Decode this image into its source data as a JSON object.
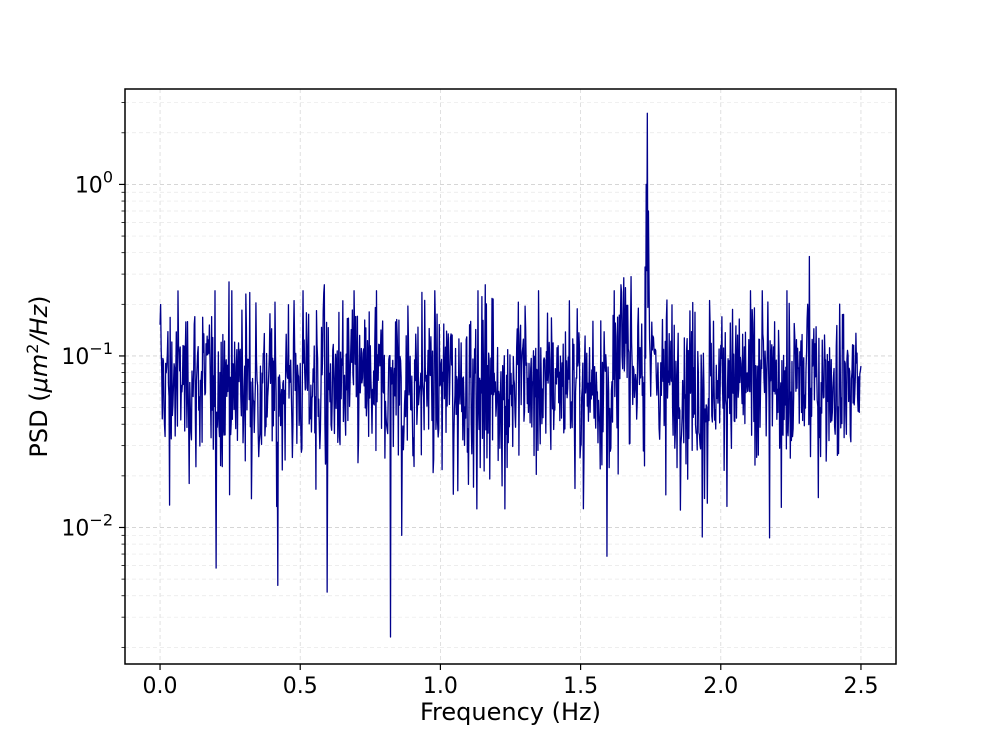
{
  "chart_data": {
    "type": "line",
    "title": "",
    "xlabel": "Frequency (Hz)",
    "ylabel_prefix": "PSD (",
    "ylabel_unit_main": "μm",
    "ylabel_unit_exp": "2",
    "ylabel_unit_tail": "/Hz",
    "ylabel_suffix": ")",
    "xlim": [
      -0.125,
      2.625
    ],
    "ylim": [
      0.0016,
      3.6
    ],
    "yscale": "log",
    "grid": true,
    "x_ticks": [
      0.0,
      0.5,
      1.0,
      1.5,
      2.0,
      2.5
    ],
    "x_tick_labels": [
      "0.0",
      "0.5",
      "1.0",
      "1.5",
      "2.0",
      "2.5"
    ],
    "y_ticks": [
      {
        "value": 1,
        "base": "10",
        "exp": "0"
      },
      {
        "value": 0.1,
        "base": "10",
        "exp": "−1"
      },
      {
        "value": 0.01,
        "base": "10",
        "exp": "−2"
      }
    ],
    "series": [
      {
        "color": "#00008b",
        "n_points": 1251,
        "x_start": 0.0,
        "x_step": 0.002,
        "baseline": 0.085,
        "features": [
          {
            "x": 1.738,
            "y": 2.6
          },
          {
            "x": 1.734,
            "y": 1.0
          },
          {
            "x": 1.742,
            "y": 0.7
          },
          {
            "x": 1.73,
            "y": 0.33
          },
          {
            "x": 2.316,
            "y": 0.38
          },
          {
            "x": 2.31,
            "y": 0.2
          },
          {
            "x": 0.822,
            "y": 0.0023
          },
          {
            "x": 0.2,
            "y": 0.0058
          },
          {
            "x": 0.42,
            "y": 0.0046
          },
          {
            "x": 0.596,
            "y": 0.0042
          },
          {
            "x": 1.594,
            "y": 0.0068
          },
          {
            "x": 2.174,
            "y": 0.0087
          },
          {
            "x": 1.934,
            "y": 0.0088
          },
          {
            "x": 0.862,
            "y": 0.009
          },
          {
            "x": 0.034,
            "y": 0.0135
          },
          {
            "x": 0.246,
            "y": 0.27
          },
          {
            "x": 0.586,
            "y": 0.26
          },
          {
            "x": 0.292,
            "y": 0.185
          },
          {
            "x": 1.16,
            "y": 0.26
          },
          {
            "x": 1.644,
            "y": 0.26
          },
          {
            "x": 1.66,
            "y": 0.25
          },
          {
            "x": 1.68,
            "y": 0.29
          }
        ]
      }
    ]
  }
}
